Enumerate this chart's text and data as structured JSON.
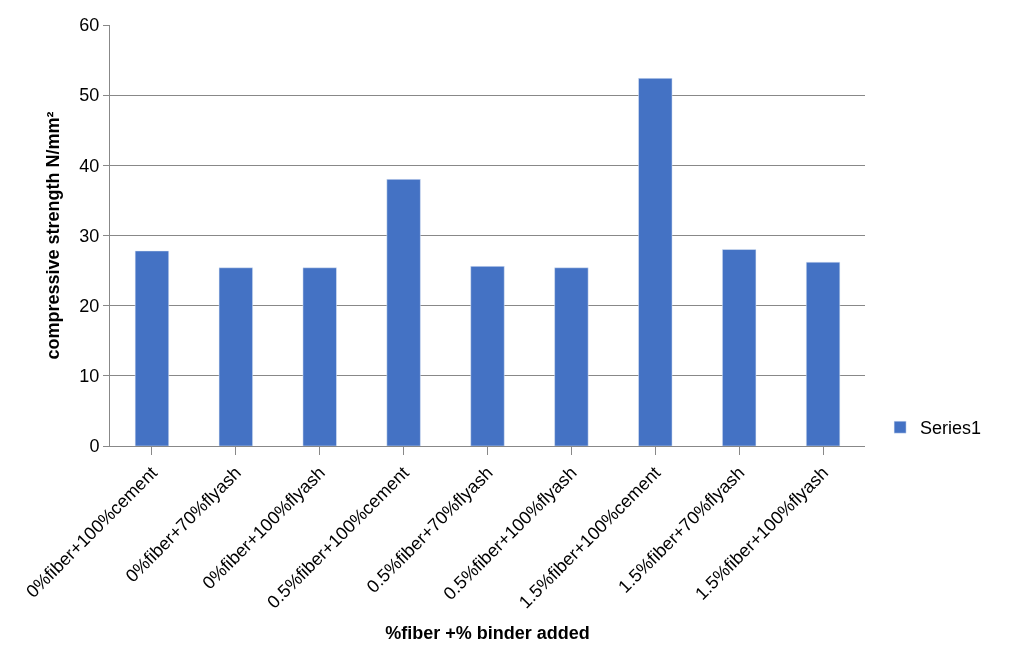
{
  "chart_data": {
    "type": "bar",
    "xlabel": "%fiber +% binder added",
    "ylabel": "compressive strength N/mm²",
    "categories": [
      "0%fiber+100%cement",
      "0%fiber+70%flyash",
      "0%fiber+100%flyash",
      "0.5%fiber+100%cement",
      "0.5%fiber+70%flyash",
      "0.5%fiber+100%flyash",
      "1.5%fiber+100%cement",
      "1.5%fiber+70%flyash",
      "1.5%fiber+100%flyash"
    ],
    "series": [
      {
        "name": "Series1",
        "color": "#4472c4",
        "values": [
          27.8,
          25.4,
          25.4,
          38.0,
          25.6,
          25.4,
          52.4,
          28.0,
          26.2
        ]
      }
    ],
    "ylim": [
      0,
      60
    ],
    "yticks": [
      0,
      10,
      20,
      30,
      40,
      50,
      60
    ],
    "grid": "y",
    "legend": "right"
  }
}
